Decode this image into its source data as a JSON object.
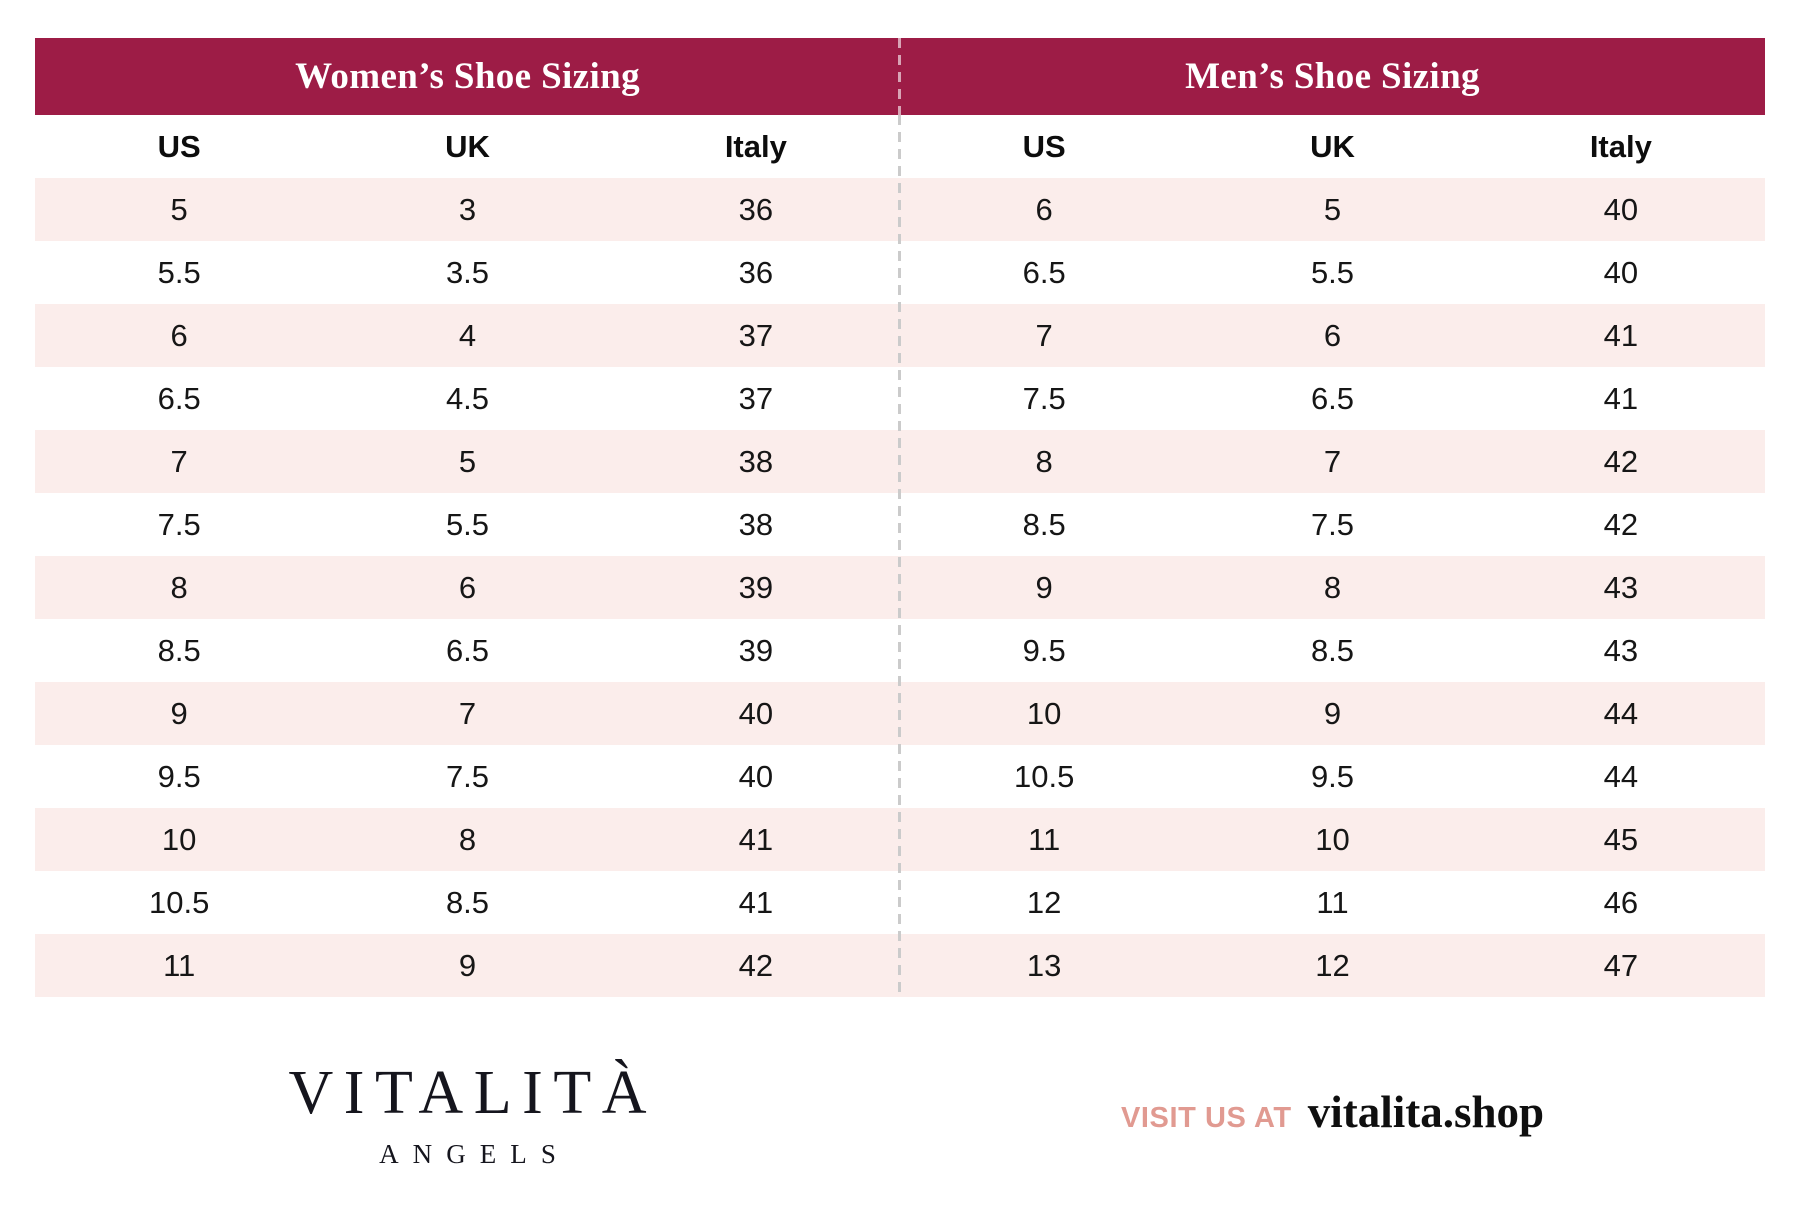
{
  "colors": {
    "header_bar": "#9D1C46",
    "row_pink": "#FBEDEB",
    "divider_gray": "#cbcbcb",
    "divider_on_header": "rgba(255,255,255,0.6)",
    "visit_accent": "#E19A91",
    "text": "#151515"
  },
  "tables": {
    "women": {
      "title": "Women’s Shoe Sizing",
      "columns": [
        "US",
        "UK",
        "Italy"
      ],
      "rows": [
        [
          "5",
          "3",
          "36"
        ],
        [
          "5.5",
          "3.5",
          "36"
        ],
        [
          "6",
          "4",
          "37"
        ],
        [
          "6.5",
          "4.5",
          "37"
        ],
        [
          "7",
          "5",
          "38"
        ],
        [
          "7.5",
          "5.5",
          "38"
        ],
        [
          "8",
          "6",
          "39"
        ],
        [
          "8.5",
          "6.5",
          "39"
        ],
        [
          "9",
          "7",
          "40"
        ],
        [
          "9.5",
          "7.5",
          "40"
        ],
        [
          "10",
          "8",
          "41"
        ],
        [
          "10.5",
          "8.5",
          "41"
        ],
        [
          "11",
          "9",
          "42"
        ]
      ]
    },
    "men": {
      "title": "Men’s Shoe Sizing",
      "columns": [
        "US",
        "UK",
        "Italy"
      ],
      "rows": [
        [
          "6",
          "5",
          "40"
        ],
        [
          "6.5",
          "5.5",
          "40"
        ],
        [
          "7",
          "6",
          "41"
        ],
        [
          "7.5",
          "6.5",
          "41"
        ],
        [
          "8",
          "7",
          "42"
        ],
        [
          "8.5",
          "7.5",
          "42"
        ],
        [
          "9",
          "8",
          "43"
        ],
        [
          "9.5",
          "8.5",
          "43"
        ],
        [
          "10",
          "9",
          "44"
        ],
        [
          "10.5",
          "9.5",
          "44"
        ],
        [
          "11",
          "10",
          "45"
        ],
        [
          "12",
          "11",
          "46"
        ],
        [
          "13",
          "12",
          "47"
        ]
      ]
    }
  },
  "footer": {
    "brand_name": "VITALITÀ",
    "brand_sub": "ANGELS",
    "visit_label": "VISIT US AT",
    "visit_url": "vitalita.shop"
  }
}
